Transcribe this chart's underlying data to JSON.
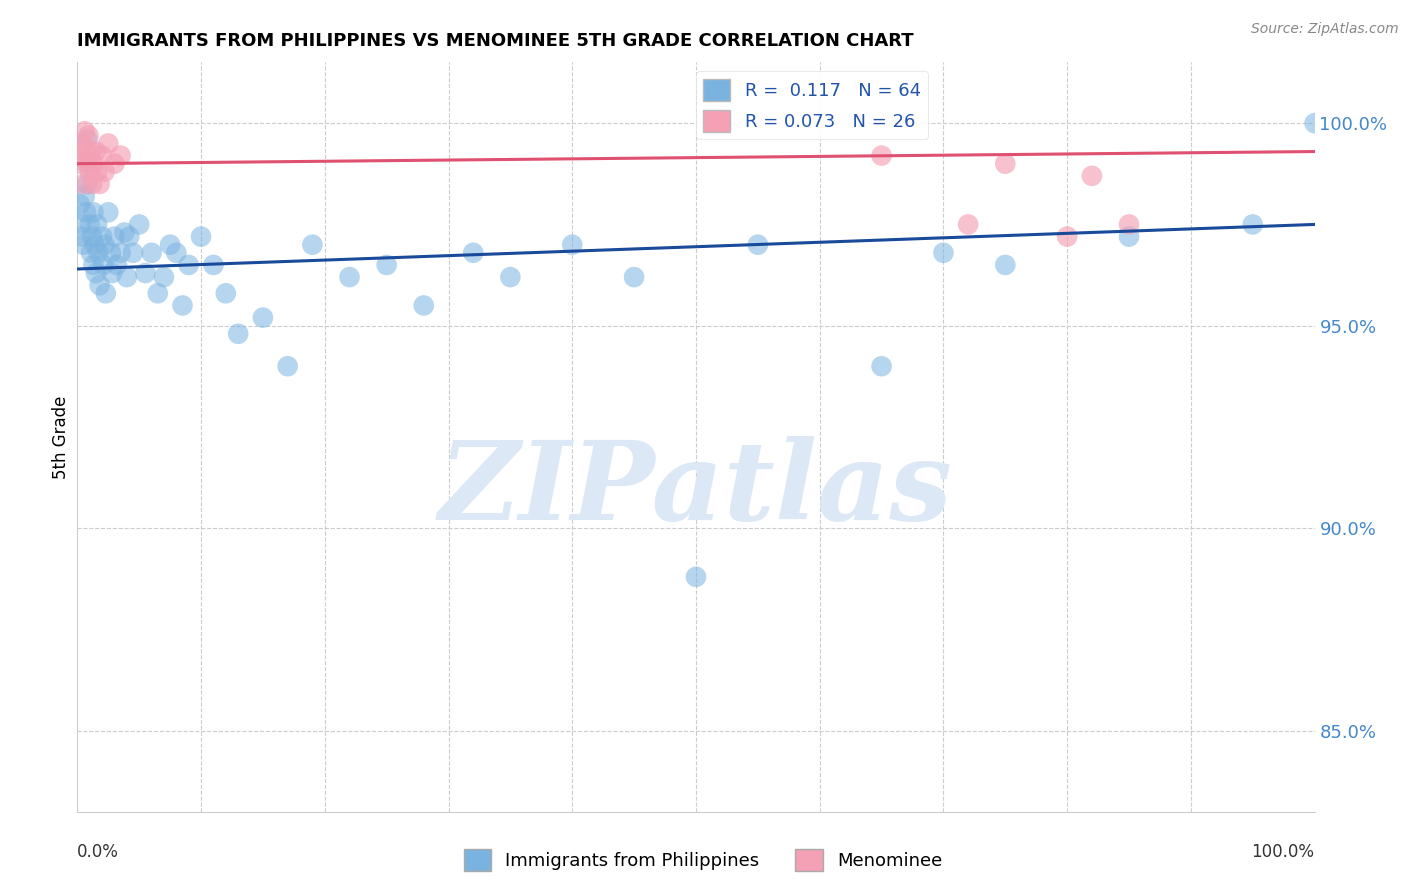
{
  "title": "IMMIGRANTS FROM PHILIPPINES VS MENOMINEE 5TH GRADE CORRELATION CHART",
  "source": "Source: ZipAtlas.com",
  "ylabel": "5th Grade",
  "ytick_values": [
    0.85,
    0.9,
    0.95,
    1.0
  ],
  "xlim": [
    0.0,
    1.0
  ],
  "ylim": [
    0.83,
    1.015
  ],
  "legend_R1": "0.117",
  "legend_N1": "64",
  "legend_R2": "0.073",
  "legend_N2": "26",
  "blue_color": "#7ab3e0",
  "pink_color": "#f4a0b5",
  "blue_line_color": "#1a4a9a",
  "pink_line_color": "#e05070",
  "watermark_color": "#dce8f5",
  "blue_x": [
    0.002,
    0.003,
    0.004,
    0.005,
    0.006,
    0.007,
    0.008,
    0.008,
    0.009,
    0.01,
    0.011,
    0.012,
    0.013,
    0.013,
    0.014,
    0.015,
    0.016,
    0.017,
    0.018,
    0.02,
    0.021,
    0.022,
    0.023,
    0.025,
    0.027,
    0.028,
    0.03,
    0.032,
    0.035,
    0.038,
    0.04,
    0.042,
    0.045,
    0.05,
    0.055,
    0.06,
    0.065,
    0.07,
    0.075,
    0.08,
    0.085,
    0.09,
    0.1,
    0.11,
    0.12,
    0.13,
    0.15,
    0.17,
    0.19,
    0.22,
    0.25,
    0.28,
    0.32,
    0.35,
    0.4,
    0.45,
    0.5,
    0.55,
    0.65,
    0.7,
    0.75,
    0.85,
    0.95,
    1.0
  ],
  "blue_y": [
    0.98,
    0.975,
    0.972,
    0.97,
    0.982,
    0.978,
    0.996,
    0.985,
    0.99,
    0.975,
    0.968,
    0.972,
    0.965,
    0.978,
    0.97,
    0.963,
    0.975,
    0.968,
    0.96,
    0.972,
    0.965,
    0.97,
    0.958,
    0.978,
    0.968,
    0.963,
    0.972,
    0.965,
    0.968,
    0.973,
    0.962,
    0.972,
    0.968,
    0.975,
    0.963,
    0.968,
    0.958,
    0.962,
    0.97,
    0.968,
    0.955,
    0.965,
    0.972,
    0.965,
    0.958,
    0.948,
    0.952,
    0.94,
    0.97,
    0.962,
    0.965,
    0.955,
    0.968,
    0.962,
    0.97,
    0.962,
    0.888,
    0.97,
    0.94,
    0.968,
    0.965,
    0.972,
    0.975,
    1.0
  ],
  "pink_x": [
    0.002,
    0.003,
    0.004,
    0.005,
    0.006,
    0.007,
    0.008,
    0.009,
    0.01,
    0.011,
    0.012,
    0.013,
    0.015,
    0.016,
    0.018,
    0.02,
    0.022,
    0.025,
    0.03,
    0.035,
    0.65,
    0.72,
    0.75,
    0.8,
    0.82,
    0.85
  ],
  "pink_y": [
    0.993,
    0.99,
    0.995,
    0.985,
    0.998,
    0.993,
    0.99,
    0.997,
    0.988,
    0.993,
    0.985,
    0.99,
    0.993,
    0.988,
    0.985,
    0.992,
    0.988,
    0.995,
    0.99,
    0.992,
    0.992,
    0.975,
    0.99,
    0.972,
    0.987,
    0.975
  ],
  "blue_trend_start": 0.964,
  "blue_trend_end": 0.975,
  "pink_trend_start": 0.99,
  "pink_trend_end": 0.993,
  "xtick_positions": [
    0.0,
    0.1,
    0.2,
    0.3,
    0.4,
    0.5,
    0.6,
    0.7,
    0.8,
    0.9,
    1.0
  ]
}
